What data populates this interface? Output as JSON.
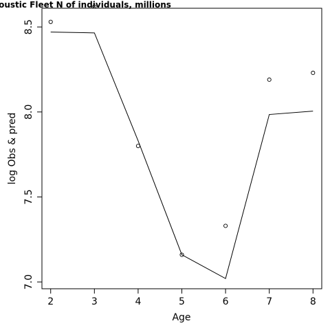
{
  "chart_data": {
    "type": "line",
    "title": "coustic Fleet   N of individuals, millions",
    "xlabel": "Age",
    "ylabel": "log Obs & pred",
    "x": [
      2,
      3,
      4,
      5,
      6,
      7,
      8
    ],
    "xlim": [
      1.8,
      8.2
    ],
    "ylim": [
      6.96,
      8.61
    ],
    "xticks": [
      "2",
      "3",
      "4",
      "5",
      "6",
      "7",
      "8"
    ],
    "yticks": [
      "7.0",
      "7.5",
      "8.0",
      "8.5"
    ],
    "series": [
      {
        "style": "points",
        "values": [
          8.53,
          8.62,
          7.8,
          7.16,
          7.33,
          8.19,
          8.23
        ]
      },
      {
        "style": "line",
        "values": [
          8.47,
          8.465,
          7.83,
          7.16,
          7.02,
          7.985,
          8.005
        ]
      }
    ],
    "grid": false
  }
}
